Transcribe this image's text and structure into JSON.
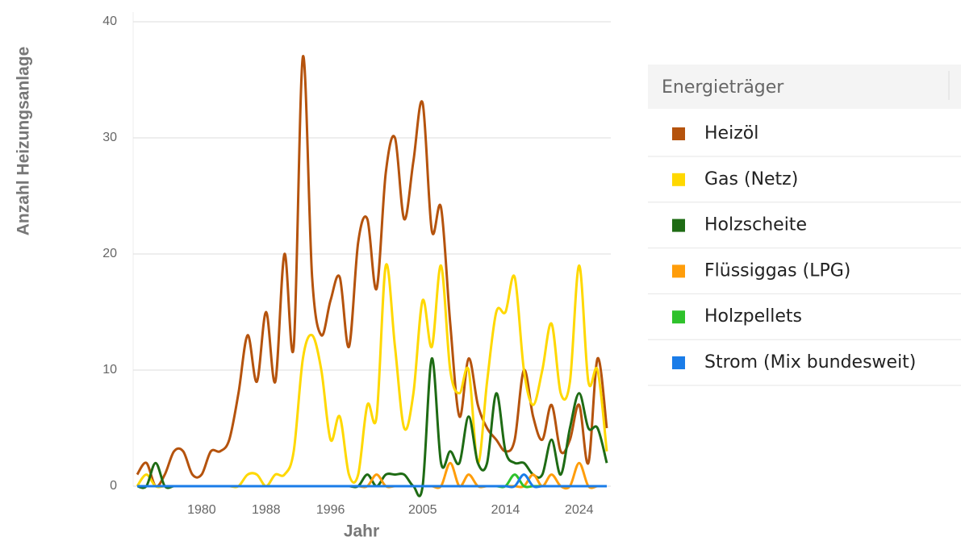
{
  "chart_data": {
    "type": "line",
    "y_label": "Anzahl Heizungsanlage",
    "x_label": "Jahr",
    "legend_title": "Energieträger",
    "categories": [
      null,
      null,
      null,
      null,
      null,
      null,
      null,
      "1980",
      null,
      null,
      null,
      null,
      null,
      null,
      "1988",
      null,
      null,
      null,
      null,
      null,
      null,
      "1996",
      null,
      null,
      null,
      null,
      null,
      null,
      null,
      null,
      null,
      "2005",
      null,
      null,
      null,
      null,
      null,
      null,
      null,
      null,
      "2014",
      null,
      null,
      null,
      null,
      null,
      null,
      null,
      "2024",
      null,
      null,
      null
    ],
    "ylim": [
      0,
      40
    ],
    "yticks": [
      0,
      10,
      20,
      30,
      40
    ],
    "grid": true,
    "series": [
      {
        "name": "Heizöl",
        "color": "#b5530d",
        "values": [
          1,
          2,
          0,
          1,
          3,
          3,
          1,
          1,
          3,
          3,
          4,
          8,
          13,
          9,
          15,
          9,
          20,
          12,
          37,
          18,
          13,
          16,
          18,
          12,
          21,
          23,
          17,
          27,
          30,
          23,
          28,
          33,
          22,
          24,
          14,
          6,
          11,
          7,
          5,
          4,
          3,
          4,
          10,
          6,
          4,
          7,
          3,
          4,
          7,
          2,
          11,
          5
        ]
      },
      {
        "name": "Gas (Netz)",
        "color": "#ffd800",
        "values": [
          0,
          1,
          0,
          0,
          0,
          0,
          0,
          0,
          0,
          0,
          0,
          0,
          1,
          1,
          0,
          1,
          1,
          3,
          11,
          13,
          10,
          4,
          6,
          1,
          1,
          7,
          6,
          19,
          12,
          5,
          8,
          16,
          12,
          19,
          10,
          8,
          10,
          2,
          9,
          15,
          15,
          18,
          10,
          7,
          10,
          14,
          8,
          9,
          19,
          9,
          10,
          3
        ]
      },
      {
        "name": "Holzscheite",
        "color": "#1e6b14",
        "values": [
          0,
          0,
          2,
          0,
          0,
          0,
          0,
          0,
          0,
          0,
          0,
          0,
          0,
          0,
          0,
          0,
          0,
          0,
          0,
          0,
          0,
          0,
          0,
          0,
          0,
          1,
          0,
          1,
          1,
          1,
          0,
          0,
          11,
          2,
          3,
          2,
          6,
          2,
          2,
          8,
          3,
          2,
          2,
          1,
          1,
          4,
          1,
          5,
          8,
          5,
          5,
          2
        ]
      },
      {
        "name": "Flüssiggas (LPG)",
        "color": "#ff9d0a",
        "values": [
          0,
          0,
          0,
          0,
          0,
          0,
          0,
          0,
          0,
          0,
          0,
          0,
          0,
          0,
          0,
          0,
          0,
          0,
          0,
          0,
          0,
          0,
          0,
          0,
          0,
          0,
          1,
          0,
          0,
          0,
          0,
          0,
          0,
          0,
          2,
          0,
          1,
          0,
          0,
          0,
          0,
          0,
          0,
          1,
          0,
          1,
          0,
          0,
          2,
          0,
          0,
          0
        ]
      },
      {
        "name": "Holzpellets",
        "color": "#2ec22b",
        "values": [
          0,
          0,
          0,
          0,
          0,
          0,
          0,
          0,
          0,
          0,
          0,
          0,
          0,
          0,
          0,
          0,
          0,
          0,
          0,
          0,
          0,
          0,
          0,
          0,
          0,
          0,
          0,
          0,
          0,
          0,
          0,
          0,
          0,
          0,
          0,
          0,
          0,
          0,
          0,
          0,
          0,
          1,
          0,
          0,
          0,
          0,
          0,
          0,
          0,
          0,
          0,
          0
        ]
      },
      {
        "name": "Strom (Mix bundesweit)",
        "color": "#1a7ce8",
        "values": [
          0,
          0,
          0,
          0,
          0,
          0,
          0,
          0,
          0,
          0,
          0,
          0,
          0,
          0,
          0,
          0,
          0,
          0,
          0,
          0,
          0,
          0,
          0,
          0,
          0,
          0,
          0,
          0,
          0,
          0,
          0,
          0,
          0,
          0,
          0,
          0,
          0,
          0,
          0,
          0,
          0,
          0,
          1,
          0,
          0,
          0,
          0,
          0,
          0,
          0,
          0,
          0
        ]
      }
    ]
  }
}
